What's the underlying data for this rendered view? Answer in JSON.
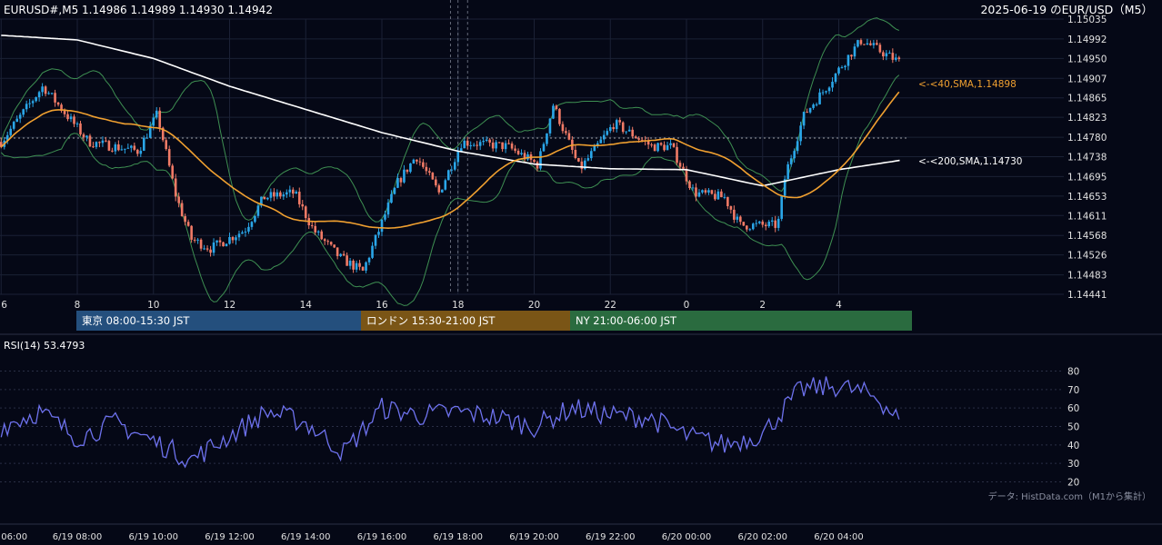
{
  "header": {
    "symbol_info": "EURUSD#,M5 1.14986 1.14989 1.14930 1.14942",
    "top_right_title": "2025-06-19 のEUR/USD（M5）"
  },
  "colors": {
    "background": "#050816",
    "bull_candle": "#2aa6e8",
    "bear_candle": "#f07a66",
    "sma40": "#f0a030",
    "sma200": "#ffffff",
    "bollinger": "#3e8f52",
    "rsi_line": "#6e72ee",
    "session_tokyo": "#244f7d",
    "session_london": "#7a5516",
    "session_ny": "#2a6b3f"
  },
  "sessions": [
    {
      "label": "東京 08:00-15:30 JST",
      "color": "#244f7d"
    },
    {
      "label": "ロンドン 15:30-21:00 JST",
      "color": "#7a5516"
    },
    {
      "label": "NY 21:00-06:00 JST",
      "color": "#2a6b3f"
    }
  ],
  "indicator_labels": {
    "sma40": "<-<40,SMA,1.14898",
    "sma200": "<-<200,SMA,1.14730"
  },
  "rsi": {
    "label": "RSI(14) 53.4793",
    "ticks": [
      "80",
      "70",
      "60",
      "50",
      "40",
      "30",
      "20"
    ]
  },
  "source_note": "データ: HistData.com（M1から集計）",
  "chart_data": {
    "type": "candlestick",
    "timeframe": "M5",
    "ylim": [
      1.14441,
      1.15035
    ],
    "y_ticks": [
      "1.15035",
      "1.14992",
      "1.14950",
      "1.14907",
      "1.14865",
      "1.14823",
      "1.14780",
      "1.14738",
      "1.14695",
      "1.14653",
      "1.14611",
      "1.14568",
      "1.14526",
      "1.14483",
      "1.14441"
    ],
    "x_hour_ticks": [
      "6",
      "8",
      "10",
      "12",
      "14",
      "16",
      "18",
      "20",
      "22",
      "0",
      "2",
      "4"
    ],
    "x_date_ticks": [
      "06:00",
      "6/19 08:00",
      "6/19 10:00",
      "6/19 12:00",
      "6/19 14:00",
      "6/19 16:00",
      "6/19 18:00",
      "6/19 20:00",
      "6/19 22:00",
      "6/20 00:00",
      "6/20 02:00",
      "6/20 04:00"
    ],
    "last_ohlc": {
      "open": 1.14986,
      "high": 1.14989,
      "low": 1.1493,
      "close": 1.14942
    },
    "close_anchors": [
      {
        "hour": 6.0,
        "close": 1.1477
      },
      {
        "hour": 7.1,
        "close": 1.1489
      },
      {
        "hour": 8.3,
        "close": 1.1477
      },
      {
        "hour": 9.6,
        "close": 1.1475
      },
      {
        "hour": 10.1,
        "close": 1.1483
      },
      {
        "hour": 10.6,
        "close": 1.1465
      },
      {
        "hour": 11.0,
        "close": 1.1456
      },
      {
        "hour": 11.5,
        "close": 1.1454
      },
      {
        "hour": 12.4,
        "close": 1.1458
      },
      {
        "hour": 12.9,
        "close": 1.1465
      },
      {
        "hour": 13.7,
        "close": 1.1466
      },
      {
        "hour": 14.2,
        "close": 1.1458
      },
      {
        "hour": 14.9,
        "close": 1.1452
      },
      {
        "hour": 15.5,
        "close": 1.1449
      },
      {
        "hour": 16.4,
        "close": 1.1468
      },
      {
        "hour": 16.9,
        "close": 1.1474
      },
      {
        "hour": 17.5,
        "close": 1.1466
      },
      {
        "hour": 18.1,
        "close": 1.1477
      },
      {
        "hour": 19.3,
        "close": 1.1476
      },
      {
        "hour": 20.1,
        "close": 1.1472
      },
      {
        "hour": 20.5,
        "close": 1.1485
      },
      {
        "hour": 21.2,
        "close": 1.1471
      },
      {
        "hour": 22.1,
        "close": 1.1481
      },
      {
        "hour": 23.1,
        "close": 1.1476
      },
      {
        "hour": 23.6,
        "close": 1.1476
      },
      {
        "hour": 24.2,
        "close": 1.1466
      },
      {
        "hour": 25.0,
        "close": 1.1465
      },
      {
        "hour": 25.4,
        "close": 1.1459
      },
      {
        "hour": 25.9,
        "close": 1.1459
      },
      {
        "hour": 26.4,
        "close": 1.1459
      },
      {
        "hour": 26.6,
        "close": 1.147
      },
      {
        "hour": 27.1,
        "close": 1.1483
      },
      {
        "hour": 27.6,
        "close": 1.1488
      },
      {
        "hour": 28.3,
        "close": 1.1496
      },
      {
        "hour": 28.6,
        "close": 1.1499
      },
      {
        "hour": 29.0,
        "close": 1.1497
      },
      {
        "hour": 29.6,
        "close": 1.14942
      }
    ],
    "sma200_anchors": [
      {
        "hour": 6.0,
        "value": 1.15
      },
      {
        "hour": 8.0,
        "value": 1.1499
      },
      {
        "hour": 10.0,
        "value": 1.1495
      },
      {
        "hour": 12.0,
        "value": 1.1489
      },
      {
        "hour": 14.0,
        "value": 1.1484
      },
      {
        "hour": 16.0,
        "value": 1.1479
      },
      {
        "hour": 18.0,
        "value": 1.1475
      },
      {
        "hour": 20.0,
        "value": 1.14722
      },
      {
        "hour": 22.0,
        "value": 1.14712
      },
      {
        "hour": 24.0,
        "value": 1.1471
      },
      {
        "hour": 26.0,
        "value": 1.14675
      },
      {
        "hour": 28.0,
        "value": 1.1471
      },
      {
        "hour": 29.6,
        "value": 1.1473
      }
    ],
    "rsi_ylim": [
      20,
      80
    ],
    "rsi_values_hourly": [
      {
        "hour": 6,
        "value": 50
      },
      {
        "hour": 7,
        "value": 58
      },
      {
        "hour": 8,
        "value": 44
      },
      {
        "hour": 9,
        "value": 52
      },
      {
        "hour": 10,
        "value": 42
      },
      {
        "hour": 11,
        "value": 32
      },
      {
        "hour": 12,
        "value": 45
      },
      {
        "hour": 13,
        "value": 58
      },
      {
        "hour": 14,
        "value": 52
      },
      {
        "hour": 15,
        "value": 36
      },
      {
        "hour": 16,
        "value": 60
      },
      {
        "hour": 17,
        "value": 56
      },
      {
        "hour": 18,
        "value": 58
      },
      {
        "hour": 19,
        "value": 55
      },
      {
        "hour": 20,
        "value": 50
      },
      {
        "hour": 21,
        "value": 60
      },
      {
        "hour": 22,
        "value": 56
      },
      {
        "hour": 23,
        "value": 55
      },
      {
        "hour": 24,
        "value": 45
      },
      {
        "hour": 25,
        "value": 40
      },
      {
        "hour": 26,
        "value": 46
      },
      {
        "hour": 27,
        "value": 70
      },
      {
        "hour": 28,
        "value": 72
      },
      {
        "hour": 29,
        "value": 66
      },
      {
        "hour": 29.6,
        "value": 53.4793
      }
    ]
  }
}
